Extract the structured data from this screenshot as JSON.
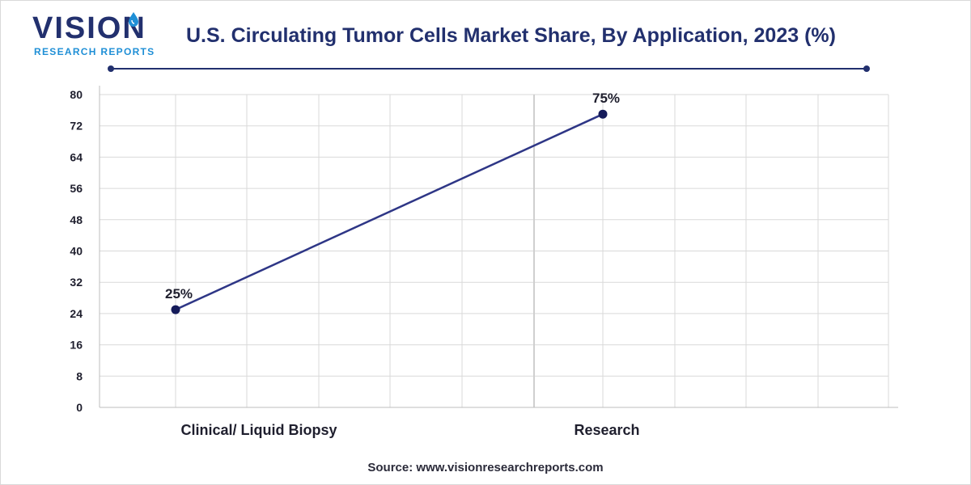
{
  "brand": {
    "name": "VISION",
    "subtitle": "RESEARCH REPORTS"
  },
  "colors": {
    "navy": "#22306e",
    "line": "#2e3686",
    "marker": "#151b5a",
    "grid": "#d9d9d9",
    "accent": "#1f8fd6"
  },
  "source_text": "Source: www.visionresearchreports.com",
  "chart_data": {
    "type": "line",
    "title": "U.S. Circulating Tumor Cells Market Share, By Application, 2023 (%)",
    "categories": [
      "Clinical/ Liquid Biopsy",
      "Research"
    ],
    "series": [
      {
        "name": "Market Share",
        "values": [
          25,
          75
        ],
        "labels": [
          "25%",
          "75%"
        ]
      }
    ],
    "ylim": [
      0,
      80
    ],
    "yticks": [
      0,
      8,
      16,
      24,
      32,
      40,
      48,
      56,
      64,
      72,
      80
    ],
    "xlabel": "",
    "ylabel": "",
    "grid": true,
    "legend": "none"
  }
}
